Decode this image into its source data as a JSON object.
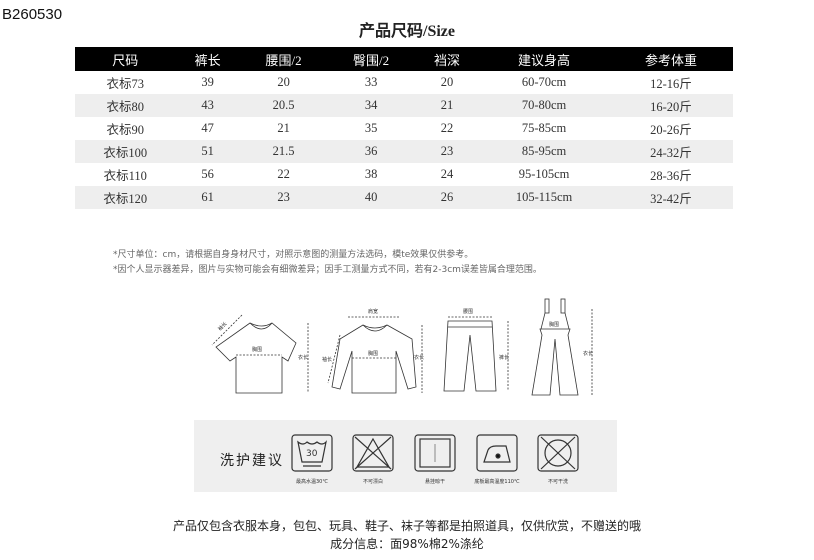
{
  "product_code": "B260530",
  "title": "产品尺码/Size",
  "table": {
    "headers": [
      "尺码",
      "裤长",
      "腰围/2",
      "臀围/2",
      "裆深",
      "建议身高",
      "参考体重"
    ],
    "rows": [
      [
        "衣标73",
        "39",
        "20",
        "33",
        "20",
        "60-70cm",
        "12-16斤"
      ],
      [
        "衣标80",
        "43",
        "20.5",
        "34",
        "21",
        "70-80cm",
        "16-20斤"
      ],
      [
        "衣标90",
        "47",
        "21",
        "35",
        "22",
        "75-85cm",
        "20-26斤"
      ],
      [
        "衣标100",
        "51",
        "21.5",
        "36",
        "23",
        "85-95cm",
        "24-32斤"
      ],
      [
        "衣标110",
        "56",
        "22",
        "38",
        "24",
        "95-105cm",
        "28-36斤"
      ],
      [
        "衣标120",
        "61",
        "23",
        "40",
        "26",
        "105-115cm",
        "32-42斤"
      ]
    ]
  },
  "notes": [
    "*尺寸单位：cm，请根据自身身材尺寸，对照示意图的测量方法选码，模te效果仅供参考。",
    "*因个人显示器差异，图片与实物可能会有细微差异；因手工测量方式不同，若有2-3cm误差皆属合理范围。"
  ],
  "diagram_labels": {
    "tshirt": {
      "sleeve": "袖长",
      "chest": "胸围",
      "length": "衣长"
    },
    "sweater": {
      "shoulder": "肩宽",
      "sleeve": "袖长",
      "chest": "胸围",
      "length": "衣长"
    },
    "pants": {
      "waist": "腰围",
      "length": "裤长"
    },
    "overalls": {
      "chest": "胸围",
      "length": "衣长"
    }
  },
  "care": {
    "title": "洗护建议",
    "items": [
      {
        "icon": "wash-30-icon",
        "label": "最高水温30℃",
        "temp": "30"
      },
      {
        "icon": "no-bleach-icon",
        "label": "不可漂白"
      },
      {
        "icon": "hang-dry-icon",
        "label": "悬挂晾干"
      },
      {
        "icon": "iron-110-icon",
        "label": "底板最高温度110℃"
      },
      {
        "icon": "no-dry-clean-icon",
        "label": "不可干洗"
      }
    ]
  },
  "footer": {
    "line1": "产品仅包含衣服本身，包包、玩具、鞋子、袜子等都是拍照道具，仅供欣赏，不赠送的哦",
    "line2": "成分信息：面98%棉2%涤纶"
  }
}
